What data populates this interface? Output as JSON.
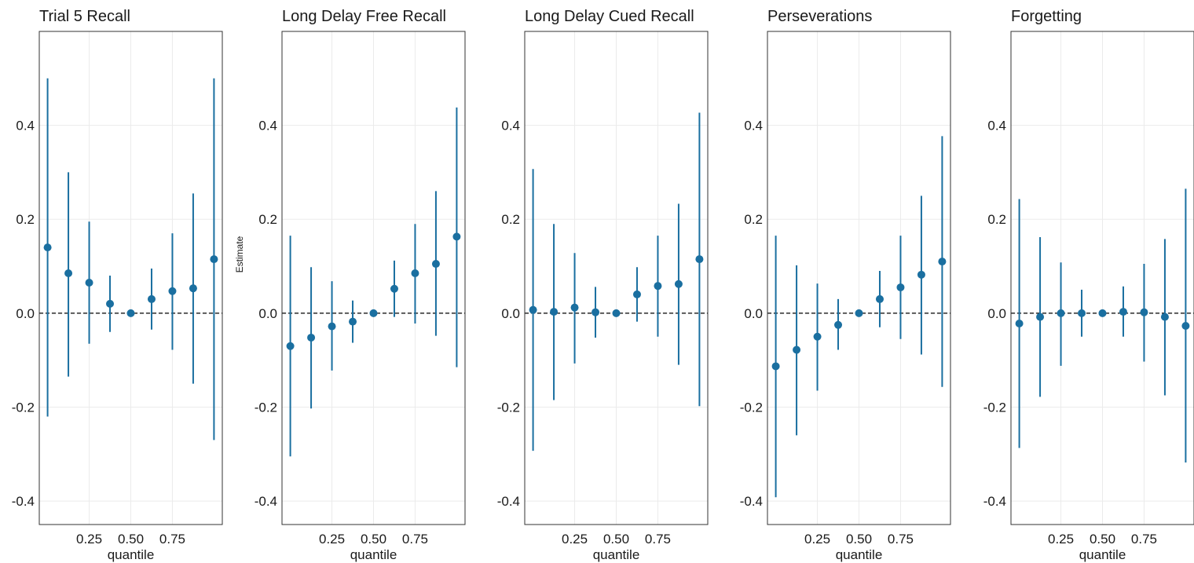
{
  "chart_data": [
    {
      "type": "errorbar",
      "title": "Trial 5 Recall",
      "x_label": "quantile",
      "x": [
        0,
        0.125,
        0.25,
        0.375,
        0.5,
        0.625,
        0.75,
        0.875,
        1
      ],
      "values": [
        0.14,
        0.085,
        0.065,
        0.02,
        0,
        0.03,
        0.047,
        0.053,
        0.115
      ],
      "lower": [
        -0.22,
        -0.135,
        -0.065,
        -0.04,
        0,
        -0.035,
        -0.078,
        -0.15,
        -0.27
      ],
      "upper": [
        0.5,
        0.3,
        0.195,
        0.08,
        0,
        0.095,
        0.17,
        0.255,
        0.5
      ],
      "color": "#1a6fa0",
      "hline": 0,
      "grid": true,
      "xlim": [
        -0.05,
        1.05
      ],
      "ylim": [
        -0.45,
        0.6
      ],
      "xticks": [
        0.25,
        {
          "value": 0.5,
          "label": "0.50"
        },
        0.75
      ],
      "yticks": [
        -0.4,
        -0.2,
        {
          "value": 0,
          "label": "0.0"
        },
        0.2,
        0.4
      ]
    },
    {
      "type": "errorbar",
      "title": "Long Delay Free Recall",
      "x_label": "quantile",
      "y_label": "Estimate",
      "x": [
        0,
        0.125,
        0.25,
        0.375,
        0.5,
        0.625,
        0.75,
        0.875,
        1
      ],
      "values": [
        -0.07,
        -0.052,
        -0.028,
        -0.018,
        0,
        0.052,
        0.085,
        0.105,
        0.163
      ],
      "lower": [
        -0.305,
        -0.203,
        -0.122,
        -0.063,
        0,
        -0.008,
        -0.022,
        -0.048,
        -0.115
      ],
      "upper": [
        0.165,
        0.098,
        0.068,
        0.027,
        0,
        0.112,
        0.19,
        0.26,
        0.438
      ],
      "color": "#1a6fa0",
      "hline": 0,
      "grid": true,
      "xlim": [
        -0.05,
        1.05
      ],
      "ylim": [
        -0.45,
        0.6
      ],
      "xticks": [
        0.25,
        {
          "value": 0.5,
          "label": "0.50"
        },
        0.75
      ],
      "yticks": [
        -0.4,
        -0.2,
        {
          "value": 0,
          "label": "0.0"
        },
        0.2,
        0.4
      ]
    },
    {
      "type": "errorbar",
      "title": "Long Delay Cued Recall",
      "x_label": "quantile",
      "x": [
        0,
        0.125,
        0.25,
        0.375,
        0.5,
        0.625,
        0.75,
        0.875,
        1
      ],
      "values": [
        0.007,
        0.003,
        0.012,
        0.002,
        0,
        0.04,
        0.058,
        0.062,
        0.115
      ],
      "lower": [
        -0.293,
        -0.185,
        -0.107,
        -0.052,
        0,
        -0.018,
        -0.05,
        -0.11,
        -0.198
      ],
      "upper": [
        0.307,
        0.19,
        0.128,
        0.056,
        0,
        0.098,
        0.165,
        0.233,
        0.427
      ],
      "color": "#1a6fa0",
      "hline": 0,
      "grid": true,
      "xlim": [
        -0.05,
        1.05
      ],
      "ylim": [
        -0.45,
        0.6
      ],
      "xticks": [
        0.25,
        {
          "value": 0.5,
          "label": "0.50"
        },
        0.75
      ],
      "yticks": [
        -0.4,
        -0.2,
        {
          "value": 0,
          "label": "0.0"
        },
        0.2,
        0.4
      ]
    },
    {
      "type": "errorbar",
      "title": "Perseverations",
      "x_label": "quantile",
      "x": [
        0,
        0.125,
        0.25,
        0.375,
        0.5,
        0.625,
        0.75,
        0.875,
        1
      ],
      "values": [
        -0.113,
        -0.078,
        -0.05,
        -0.025,
        0,
        0.03,
        0.055,
        0.082,
        0.11
      ],
      "lower": [
        -0.392,
        -0.26,
        -0.165,
        -0.078,
        0,
        -0.03,
        -0.055,
        -0.088,
        -0.157
      ],
      "upper": [
        0.165,
        0.102,
        0.063,
        0.03,
        0,
        0.09,
        0.165,
        0.25,
        0.377
      ],
      "color": "#1a6fa0",
      "hline": 0,
      "grid": true,
      "xlim": [
        -0.05,
        1.05
      ],
      "ylim": [
        -0.45,
        0.6
      ],
      "xticks": [
        0.25,
        {
          "value": 0.5,
          "label": "0.50"
        },
        0.75
      ],
      "yticks": [
        -0.4,
        -0.2,
        {
          "value": 0,
          "label": "0.0"
        },
        0.2,
        0.4
      ]
    },
    {
      "type": "errorbar",
      "title": "Forgetting",
      "x_label": "quantile",
      "x": [
        0,
        0.125,
        0.25,
        0.375,
        0.5,
        0.625,
        0.75,
        0.875,
        1
      ],
      "values": [
        -0.022,
        -0.008,
        0,
        0,
        0,
        0.003,
        0.002,
        -0.008,
        -0.027
      ],
      "lower": [
        -0.287,
        -0.178,
        -0.112,
        -0.05,
        0,
        -0.05,
        -0.103,
        -0.175,
        -0.318
      ],
      "upper": [
        0.243,
        0.162,
        0.108,
        0.05,
        0,
        0.057,
        0.105,
        0.158,
        0.265
      ],
      "color": "#1a6fa0",
      "hline": 0,
      "grid": true,
      "xlim": [
        -0.05,
        1.05
      ],
      "ylim": [
        -0.45,
        0.6
      ],
      "xticks": [
        0.25,
        {
          "value": 0.5,
          "label": "0.50"
        },
        0.75
      ],
      "yticks": [
        -0.4,
        -0.2,
        {
          "value": 0,
          "label": "0.0"
        },
        0.2,
        0.4
      ]
    }
  ]
}
